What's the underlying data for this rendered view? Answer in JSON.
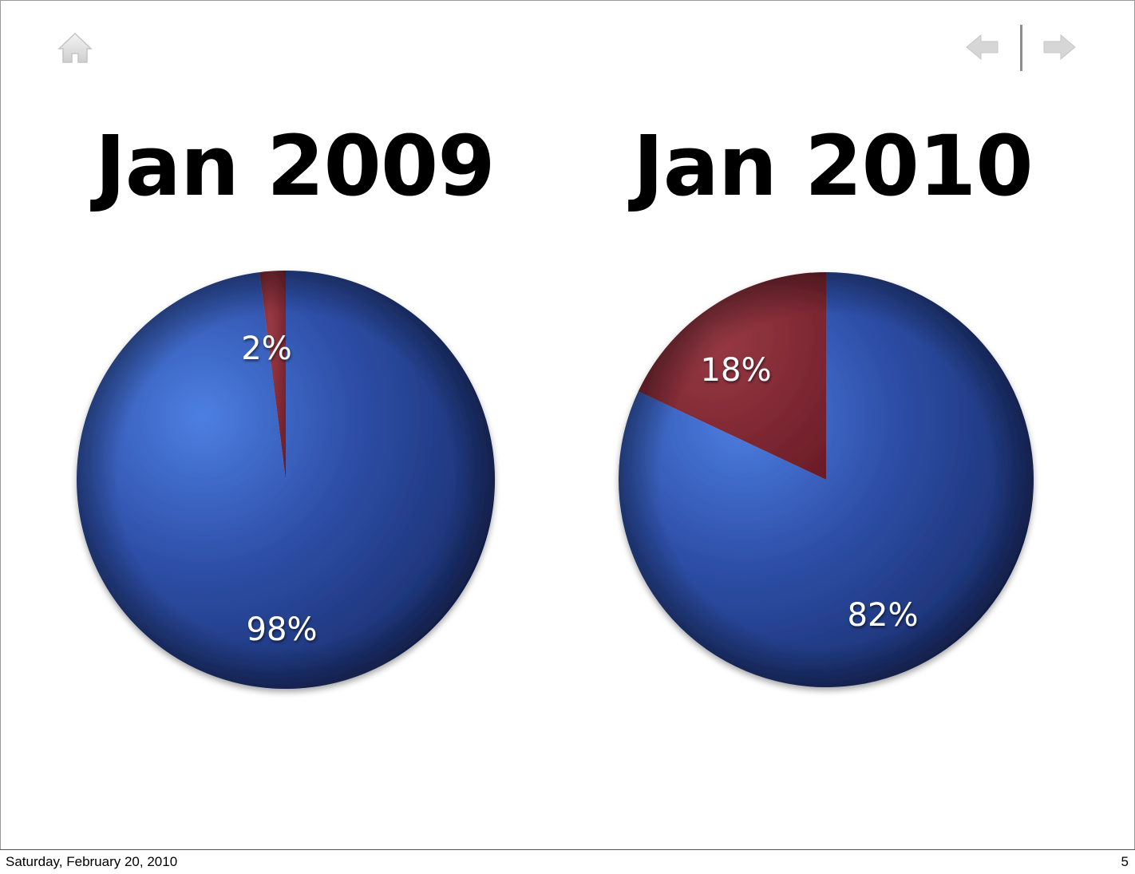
{
  "slide": {
    "footer_date": "Saturday, February 20, 2010",
    "page_number": "5",
    "icons": {
      "home": "home-icon",
      "prev": "arrow-left-icon",
      "next": "arrow-right-icon"
    }
  },
  "colors": {
    "blue": "#2e4fa8",
    "blue_light": "#4d7fe2",
    "blue_dark": "#172a66",
    "red": "#7d2630",
    "red_light": "#9a3a46"
  },
  "chart_data": [
    {
      "type": "pie",
      "title": "Jan 2009",
      "categories": [
        "2%",
        "98%"
      ],
      "values": [
        2,
        98
      ],
      "labels": [
        "2%",
        "98%"
      ],
      "colors": [
        "#7d2630",
        "#2e4fa8"
      ]
    },
    {
      "type": "pie",
      "title": "Jan 2010",
      "categories": [
        "18%",
        "82%"
      ],
      "values": [
        18,
        82
      ],
      "labels": [
        "18%",
        "82%"
      ],
      "colors": [
        "#7d2630",
        "#2e4fa8"
      ]
    }
  ]
}
